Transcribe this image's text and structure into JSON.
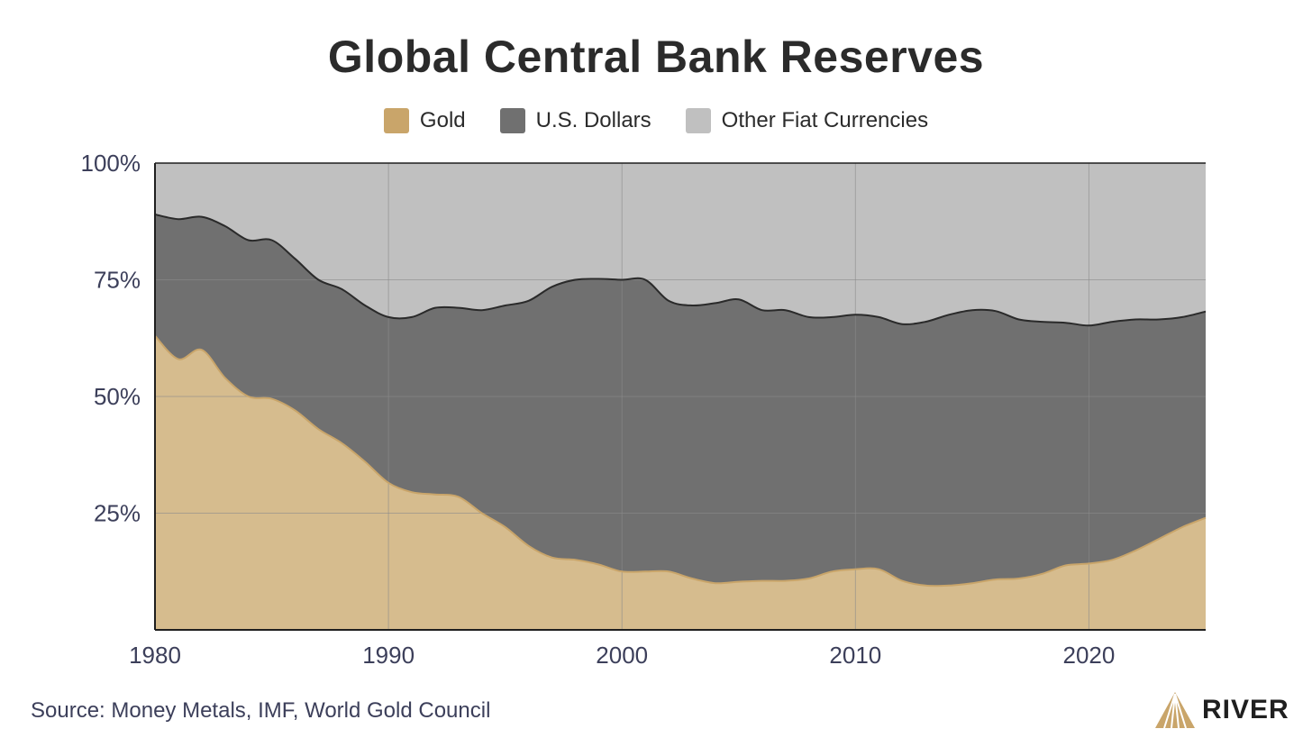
{
  "colors": {
    "gold": "#D6BC8E",
    "gold_legend": "#C9A56A",
    "usd": "#707070",
    "other": "#C0C0C0",
    "line": "#2a2a2a",
    "gold_line": "#C9A56A",
    "grid": "#8a8a8a",
    "axis_text": "#3c3f5a"
  },
  "chart_data": {
    "type": "area",
    "stacked": true,
    "title": "Global Central Bank Reserves",
    "xlabel": "",
    "ylabel": "",
    "xlim": [
      1980,
      2025
    ],
    "ylim": [
      0,
      100
    ],
    "x_ticks": [
      1980,
      1990,
      2000,
      2010,
      2020
    ],
    "x_tick_labels": [
      "1980",
      "1990",
      "2000",
      "2010",
      "2020"
    ],
    "y_ticks": [
      25,
      50,
      75,
      100
    ],
    "y_tick_labels": [
      "25%",
      "50%",
      "75%",
      "100%"
    ],
    "grid": true,
    "legend_position": "top-center",
    "x": [
      1980,
      1981,
      1982,
      1983,
      1984,
      1985,
      1986,
      1987,
      1988,
      1989,
      1990,
      1991,
      1992,
      1993,
      1994,
      1995,
      1996,
      1997,
      1998,
      1999,
      2000,
      2001,
      2002,
      2003,
      2004,
      2005,
      2006,
      2007,
      2008,
      2009,
      2010,
      2011,
      2012,
      2013,
      2014,
      2015,
      2016,
      2017,
      2018,
      2019,
      2020,
      2021,
      2022,
      2023,
      2024,
      2025
    ],
    "series": [
      {
        "name": "Gold",
        "values": [
          63,
          58,
          60,
          54,
          50,
          49.5,
          47,
          43,
          40,
          36,
          31.5,
          29.5,
          29,
          28.5,
          25,
          22,
          18,
          15.5,
          15,
          14,
          12.5,
          12.5,
          12.5,
          11,
          10,
          10.3,
          10.5,
          10.5,
          11,
          12.5,
          13,
          13,
          10.5,
          9.5,
          9.5,
          10,
          10.8,
          11,
          12,
          13.8,
          14.2,
          15,
          17,
          19.5,
          22,
          24
        ]
      },
      {
        "name": "U.S. Dollars",
        "values": [
          26,
          30,
          28.5,
          32.5,
          33.5,
          34,
          32.5,
          32,
          33,
          33.5,
          35.5,
          37.5,
          40,
          40.5,
          43.5,
          47.5,
          52.5,
          58,
          60,
          61.2,
          62.5,
          62.5,
          58,
          58.5,
          60,
          60.5,
          58,
          58,
          56,
          54.5,
          54.5,
          54,
          55,
          56.5,
          58,
          58.5,
          57.5,
          55.5,
          54,
          52,
          51,
          51,
          49.5,
          47,
          45,
          44.2
        ]
      },
      {
        "name": "Other Fiat Currencies",
        "values": [
          11,
          12,
          11.5,
          13.5,
          16.5,
          16.5,
          20.5,
          25,
          27,
          30.5,
          33,
          33,
          31,
          31,
          31.5,
          30.5,
          29.5,
          26.5,
          25,
          24.8,
          25,
          25,
          29.5,
          30.5,
          30,
          29.2,
          31.5,
          31.5,
          33,
          33,
          32.5,
          33,
          34.5,
          34,
          32.5,
          31.5,
          31.7,
          33.5,
          34,
          34.2,
          34.8,
          34,
          33.5,
          33.5,
          33,
          31.8
        ]
      }
    ]
  },
  "legend": {
    "items": [
      {
        "label": "Gold",
        "color": "#C9A56A"
      },
      {
        "label": "U.S. Dollars",
        "color": "#707070"
      },
      {
        "label": "Other Fiat Currencies",
        "color": "#C0C0C0"
      }
    ]
  },
  "footer": {
    "source": "Source: Money Metals, IMF, World Gold Council",
    "brand": "RIVER"
  }
}
